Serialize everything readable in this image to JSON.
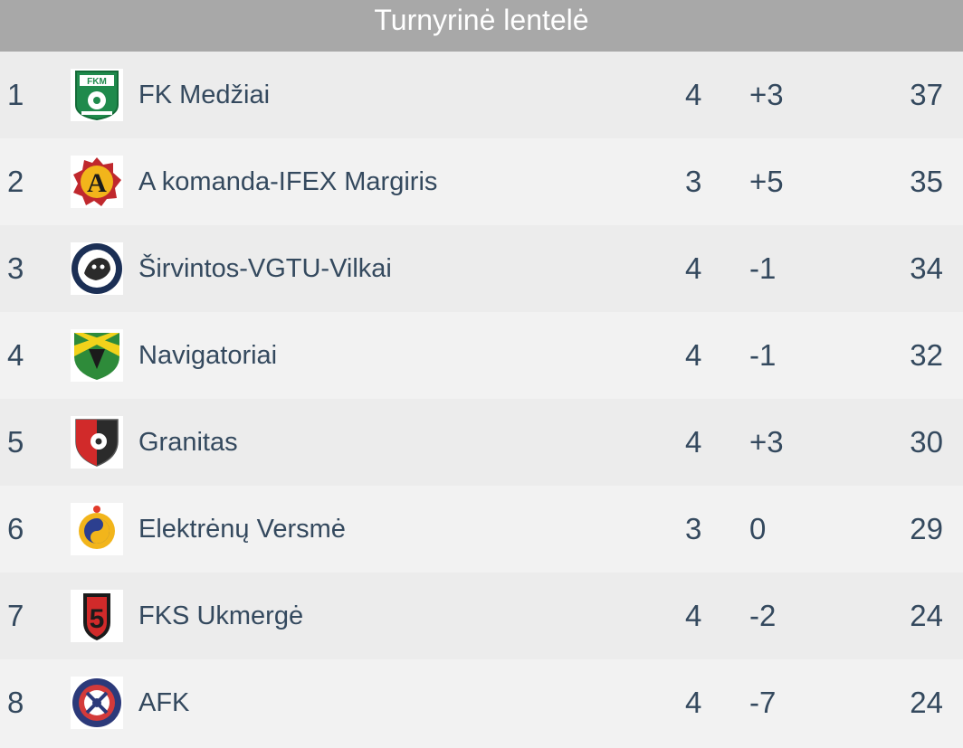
{
  "header": {
    "title": "Turnyrinė lentelė"
  },
  "teams": [
    {
      "pos": "1",
      "name": "FK Medžiai",
      "played": "4",
      "gd": "+3",
      "pts": "37",
      "logo": "fk-medziai-crest"
    },
    {
      "pos": "2",
      "name": "A komanda-IFEX Margiris",
      "played": "3",
      "gd": "+5",
      "pts": "35",
      "logo": "a-komanda-crest"
    },
    {
      "pos": "3",
      "name": "Širvintos-VGTU-Vilkai",
      "played": "4",
      "gd": "-1",
      "pts": "34",
      "logo": "sirvintos-vilkai-crest"
    },
    {
      "pos": "4",
      "name": "Navigatoriai",
      "played": "4",
      "gd": "-1",
      "pts": "32",
      "logo": "navigatoriai-crest"
    },
    {
      "pos": "5",
      "name": "Granitas",
      "played": "4",
      "gd": "+3",
      "pts": "30",
      "logo": "granitas-crest"
    },
    {
      "pos": "6",
      "name": "Elektrėnų Versmė",
      "played": "3",
      "gd": "0",
      "pts": "29",
      "logo": "elektrenu-versme-crest"
    },
    {
      "pos": "7",
      "name": "FKS Ukmergė",
      "played": "4",
      "gd": "-2",
      "pts": "24",
      "logo": "fks-ukmerge-crest"
    },
    {
      "pos": "8",
      "name": "AFK",
      "played": "4",
      "gd": "-7",
      "pts": "24",
      "logo": "afk-crest"
    }
  ],
  "colors": {
    "header_bg": "#a8a8a8",
    "header_text": "#ffffff",
    "row_odd": "#ececec",
    "row_even": "#f2f2f2",
    "text": "#34495e"
  }
}
